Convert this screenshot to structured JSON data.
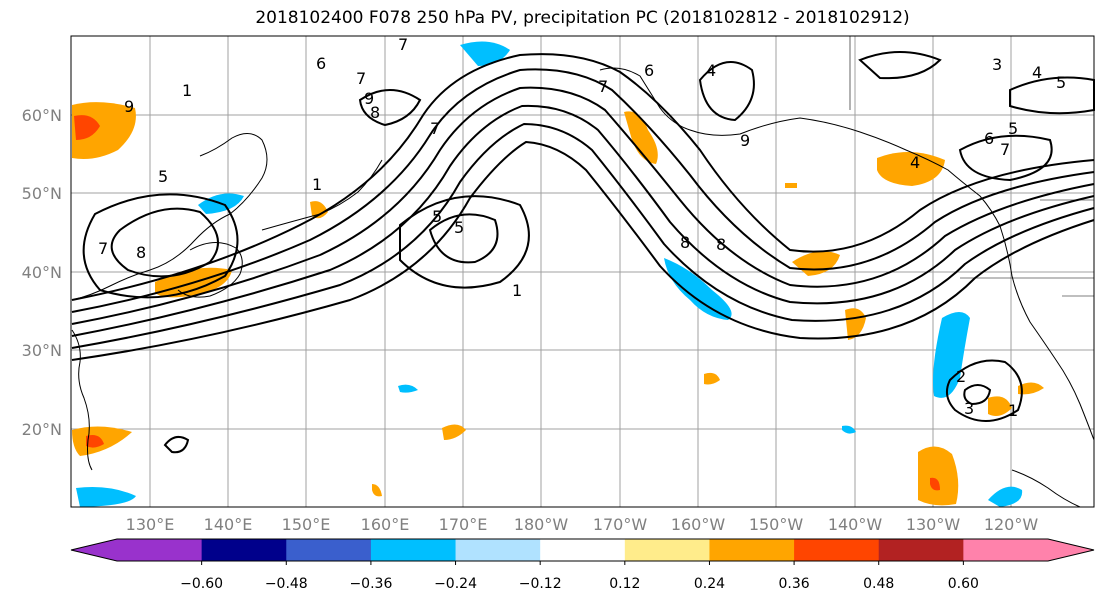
{
  "title": "2018102400 F078 250 hPa PV, precipitation PC (2018102812 - 2018102912)",
  "map": {
    "lat_ticks": [
      "60°N",
      "50°N",
      "40°N",
      "30°N",
      "20°N"
    ],
    "lon_ticks": [
      "130°E",
      "140°E",
      "150°E",
      "160°E",
      "170°E",
      "180°W",
      "170°W",
      "160°W",
      "150°W",
      "140°W",
      "130°W",
      "120°W"
    ],
    "contour_labels": [
      "6",
      "7",
      "8",
      "7",
      "9",
      "5",
      "1",
      "7",
      "8",
      "5",
      "5",
      "1",
      "8",
      "8",
      "7",
      "9",
      "4",
      "3",
      "4",
      "5",
      "6",
      "5",
      "7",
      "6",
      "4",
      "2",
      "3",
      "1",
      "1",
      "9",
      "7"
    ]
  },
  "colorbar": {
    "tick_labels": [
      "−0.60",
      "−0.48",
      "−0.36",
      "−0.24",
      "−0.12",
      "0.12",
      "0.24",
      "0.36",
      "0.48",
      "0.60"
    ],
    "colors": [
      "#9932cc",
      "#00008b",
      "#3a5fcd",
      "#00bfff",
      "#b0e2ff",
      "#ffffff",
      "#ffec8b",
      "#ffa500",
      "#ff4500",
      "#b22222",
      "#ff82ab",
      "#ff82ab"
    ]
  }
}
